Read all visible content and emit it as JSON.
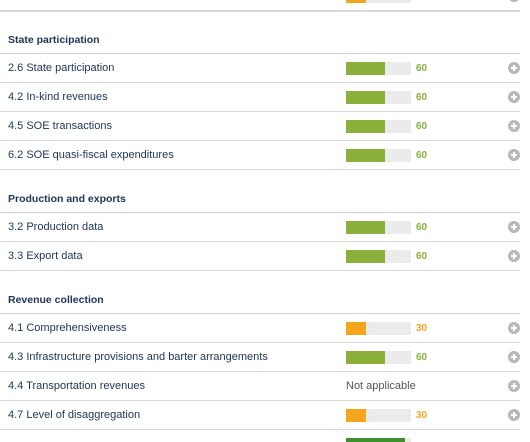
{
  "colors": {
    "green": "#8aaf3a",
    "orange": "#f3a61c",
    "dark_green": "#3f8f2d"
  },
  "sections": [
    {
      "title": "State participation",
      "items": [
        {
          "label": "2.6 State participation",
          "score": "60",
          "level": 0.6
        },
        {
          "label": "4.2 In-kind revenues",
          "score": "60",
          "level": 0.6
        },
        {
          "label": "4.5 SOE transactions",
          "score": "60",
          "level": 0.6
        },
        {
          "label": "6.2 SOE quasi-fiscal expenditures",
          "score": "60",
          "level": 0.6
        }
      ]
    },
    {
      "title": "Production and exports",
      "items": [
        {
          "label": "3.2 Production data",
          "score": "60",
          "level": 0.6
        },
        {
          "label": "3.3 Export data",
          "score": "60",
          "level": 0.6
        }
      ]
    },
    {
      "title": "Revenue collection",
      "items": [
        {
          "label": "4.1 Comprehensiveness",
          "score": "30",
          "level": 0.3
        },
        {
          "label": "4.3 Infrastructure provisions and barter arrangements",
          "score": "60",
          "level": 0.6
        },
        {
          "label": "4.4 Transportation revenues",
          "status": "Not applicable"
        },
        {
          "label": "4.7 Level of disaggregation",
          "score": "30",
          "level": 0.3
        }
      ]
    }
  ]
}
